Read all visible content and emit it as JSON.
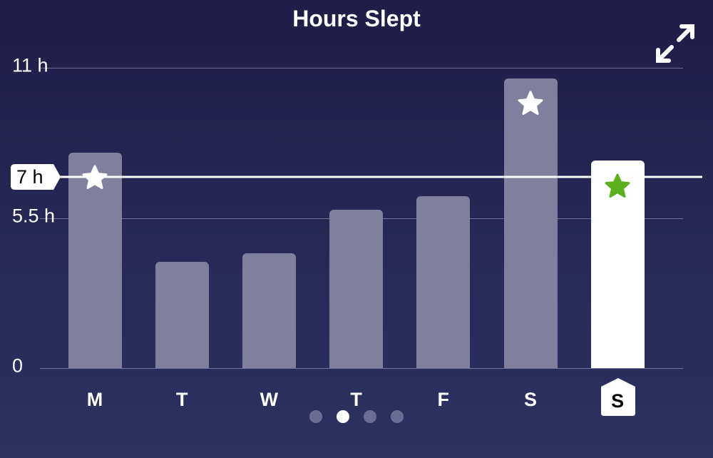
{
  "chart_data": {
    "type": "bar",
    "title": "Hours Slept",
    "categories": [
      "M",
      "T",
      "W",
      "T",
      "F",
      "S",
      "S"
    ],
    "values": [
      7.9,
      3.9,
      4.2,
      5.8,
      6.3,
      10.6,
      7.6
    ],
    "ylim": [
      0,
      11
    ],
    "yticks": [
      {
        "value": 0,
        "label": "0"
      },
      {
        "value": 5.5,
        "label": "5.5 h"
      },
      {
        "value": 11,
        "label": "11 h"
      }
    ],
    "goal": {
      "value": 7,
      "label": "7 h"
    },
    "starred": [
      true,
      false,
      false,
      false,
      false,
      true,
      true
    ],
    "highlighted_index": 6,
    "grid": true,
    "colors": {
      "bar": "#80809e",
      "today_bar": "#ffffff",
      "star": "#ffffff",
      "today_star": "#5db01d"
    }
  },
  "pager": {
    "count": 4,
    "active": 1
  },
  "icons": {
    "expand": "expand-arrows-icon"
  }
}
